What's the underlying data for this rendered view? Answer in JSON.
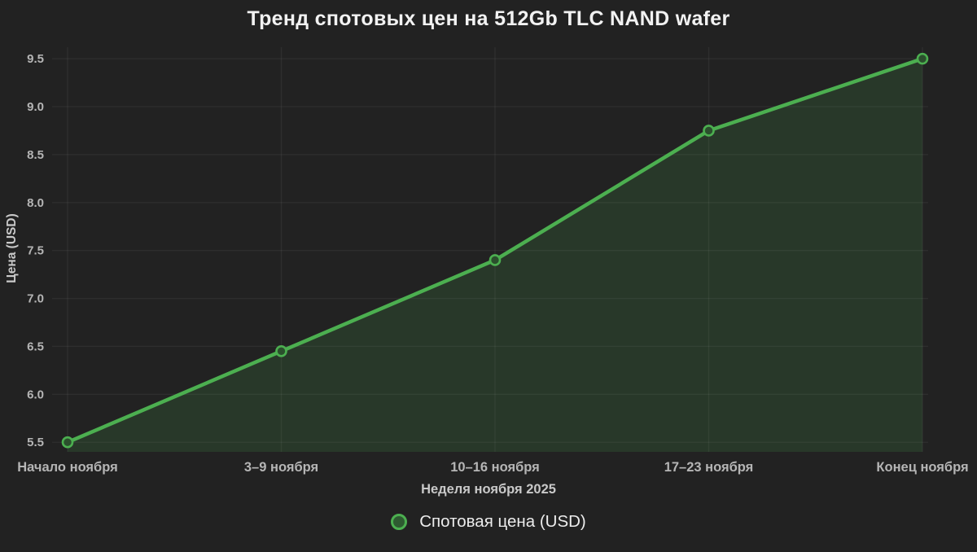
{
  "page": {
    "background": "#222222"
  },
  "chart_data": {
    "type": "area",
    "title": "Тренд спотовых цен на 512Gb TLC NAND wafer",
    "xlabel": "Неделя ноября 2025",
    "ylabel": "Цена (USD)",
    "categories": [
      "Начало ноября",
      "3–9 ноября",
      "10–16 ноября",
      "17–23 ноября",
      "Конец ноября"
    ],
    "series": [
      {
        "name": "Спотовая цена (USD)",
        "values": [
          5.5,
          6.45,
          7.4,
          8.75,
          9.5
        ],
        "line_color": "#4caf50",
        "fill_color": "rgba(76, 175, 80, 0.16)",
        "marker_fill": "#2b4f2d"
      }
    ],
    "ylim": [
      5.4,
      9.62
    ],
    "yticks": [
      5.5,
      6.0,
      6.5,
      7.0,
      7.5,
      8.0,
      8.5,
      9.0,
      9.5
    ],
    "grid": true,
    "grid_color": "rgba(255, 255, 255, 0.055)",
    "legend_position": "bottom",
    "tick_label_color": "#b5b5b5",
    "title_color": "#f2f2f2"
  }
}
